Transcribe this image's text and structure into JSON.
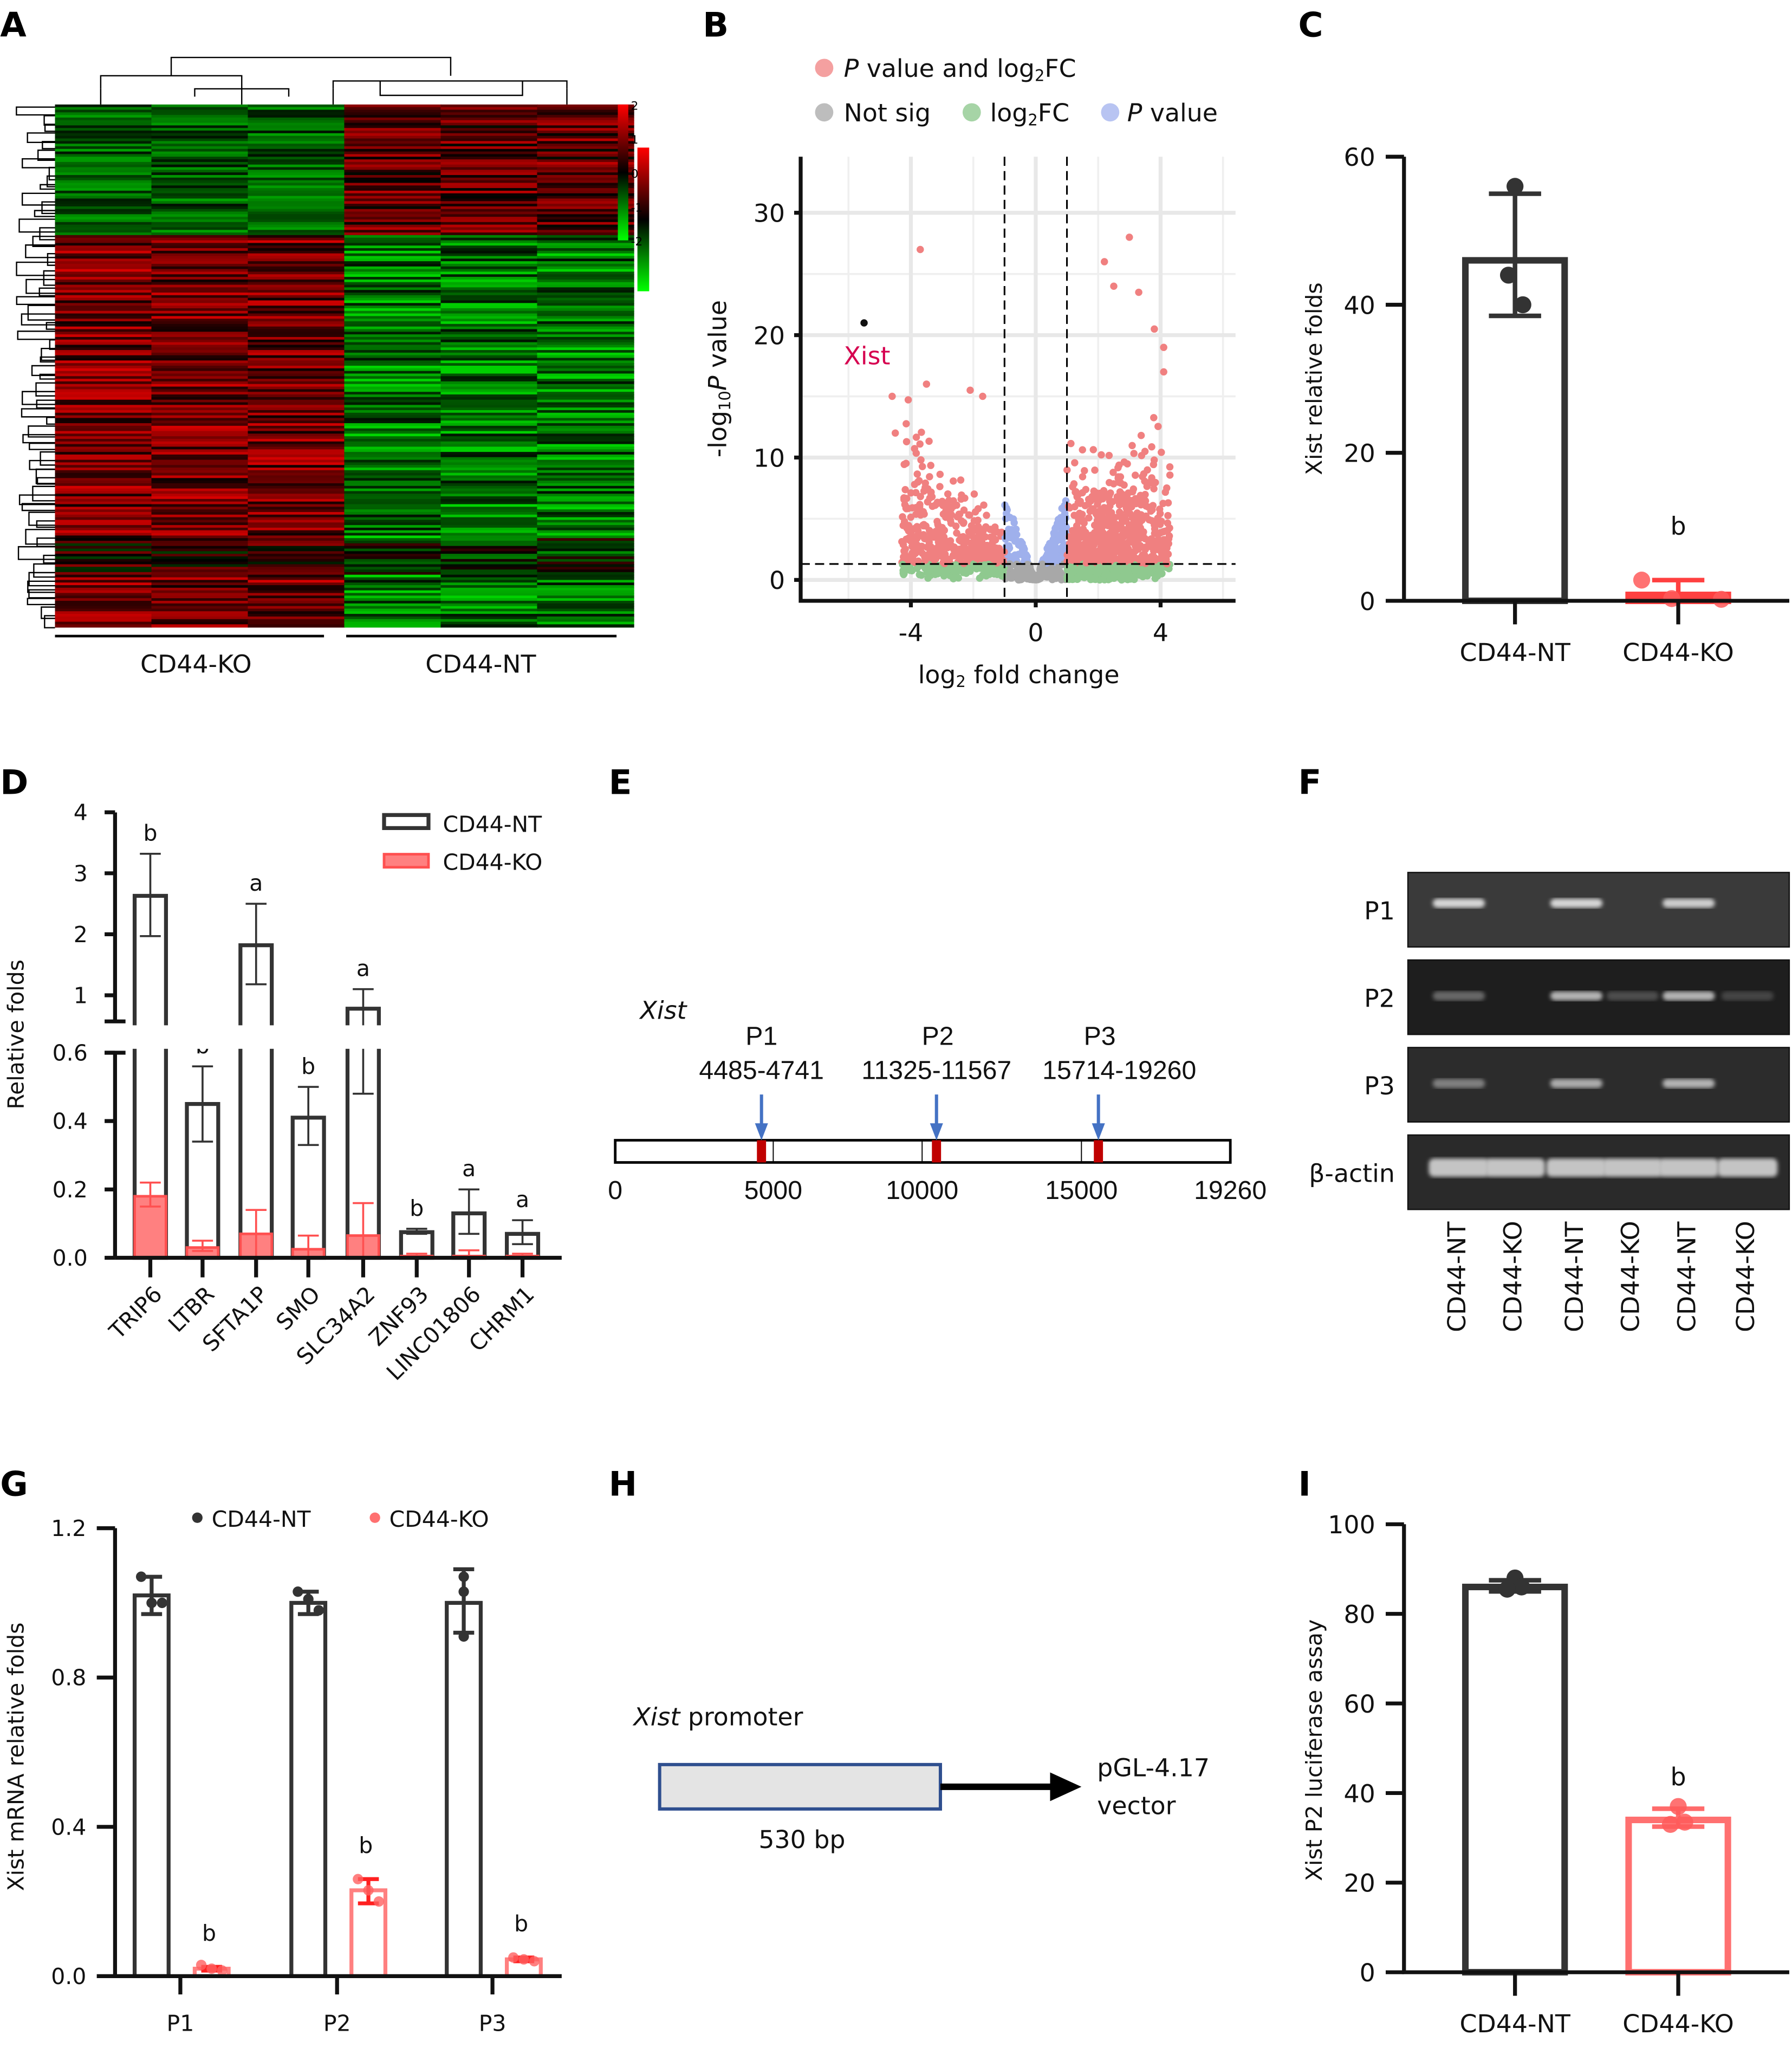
{
  "colors": {
    "nt": "#333333",
    "ko": "#ff6b6b",
    "ko_fill": "#ff8080",
    "sig_both": "#f08080",
    "not_sig": "#a8a8a8",
    "log2fc_only": "#8fc98f",
    "p_only": "#9fb0ec",
    "arrow": "#4472c4",
    "probe": "#c00000",
    "xist_label": "#d6004f"
  },
  "panel_labels": [
    "A",
    "B",
    "C",
    "D",
    "E",
    "F",
    "G",
    "H",
    "I"
  ],
  "chart_data": [
    {
      "panel": "A",
      "type": "heatmap",
      "groups": [
        "CD44-KO",
        "CD44-NT"
      ],
      "colorbar_ticks": [
        "2",
        "1",
        "0",
        "-1",
        "-2"
      ],
      "colormap": [
        "#00ff00",
        "#000000",
        "#ff0000"
      ],
      "columns": 6,
      "dendrogram": {
        "rows": true,
        "columns": true
      }
    },
    {
      "panel": "B",
      "type": "scatter",
      "xlabel_pre": "log",
      "xlabel_sub": "2",
      "xlabel_post": " fold change",
      "ylabel_pre": "-log",
      "ylabel_sub": "10",
      "ylabel_italic": "P",
      "ylabel_post": " value",
      "xticks": [
        -4,
        0,
        4
      ],
      "yticks": [
        0,
        10,
        20,
        30
      ],
      "xlim": [
        -7,
        6.5
      ],
      "ylim": [
        -1.5,
        34
      ],
      "log2fc_thresholds": [
        -1,
        1
      ],
      "p_threshold": 1.3,
      "legend": [
        {
          "italic": "P",
          "text": " value and log",
          "sub": "2",
          "tail": "FC",
          "color": "#f08080"
        },
        {
          "italic": "",
          "text": "Not sig",
          "sub": "",
          "tail": "",
          "color": "#a8a8a8"
        },
        {
          "italic": "",
          "text": "log",
          "sub": "2",
          "tail": "FC",
          "color": "#8fc98f"
        },
        {
          "italic": "P",
          "text": " value",
          "sub": "",
          "tail": "",
          "color": "#9fb0ec"
        }
      ],
      "legend_position": "top",
      "grid": true,
      "annotation": {
        "label": "Xist",
        "x": -5.5,
        "y": 21
      },
      "notable_points": [
        [
          -3.7,
          27
        ],
        [
          2.2,
          26
        ],
        [
          3,
          28
        ],
        [
          2.5,
          24
        ],
        [
          3.3,
          23.5
        ],
        [
          3.8,
          20.5
        ],
        [
          4.1,
          19
        ],
        [
          4.1,
          17
        ],
        [
          -3.5,
          16
        ],
        [
          -2.1,
          15.5
        ],
        [
          -1.7,
          15
        ],
        [
          -4.6,
          15
        ],
        [
          -4.5,
          12
        ],
        [
          3.5,
          10.5
        ]
      ]
    },
    {
      "panel": "C",
      "type": "bar",
      "categories": [
        "CD44-NT",
        "CD44-KO"
      ],
      "values": [
        46,
        0.8
      ],
      "errors_low": [
        38.5,
        0
      ],
      "errors_high": [
        55,
        2.8
      ],
      "points": [
        [
          56,
          44,
          40
        ],
        [
          2.8,
          0.3,
          0.2
        ]
      ],
      "ylabel": "Xist relative folds",
      "yticks": [
        0,
        20,
        40,
        60
      ],
      "ylim": [
        0,
        60
      ],
      "significance": [
        "",
        "b"
      ]
    },
    {
      "panel": "D",
      "type": "bar",
      "categories": [
        "TRIP6",
        "LTBR",
        "SFTA1P",
        "SMO",
        "SLC34A2",
        "ZNF93",
        "LINC01806",
        "CHRM1"
      ],
      "series": [
        {
          "name": "CD44-NT",
          "values": [
            2.63,
            0.45,
            1.82,
            0.41,
            0.78,
            0.075,
            0.13,
            0.07
          ],
          "low": [
            1.97,
            0.34,
            1.18,
            0.33,
            0.48,
            0.07,
            0.07,
            0.04
          ],
          "high": [
            3.32,
            0.56,
            2.5,
            0.5,
            1.1,
            0.085,
            0.2,
            0.11
          ]
        },
        {
          "name": "CD44-KO",
          "values": [
            0.18,
            0.03,
            0.07,
            0.025,
            0.065,
            0.005,
            0.005,
            0.005
          ],
          "low": [
            0.15,
            0.02,
            0,
            0,
            0,
            0,
            0,
            0
          ],
          "high": [
            0.22,
            0.05,
            0.14,
            0.065,
            0.16,
            0.012,
            0.022,
            0.012
          ]
        }
      ],
      "significance": [
        "b",
        "b",
        "a",
        "b",
        "a",
        "b",
        "a",
        "a"
      ],
      "ylabel": "Relative folds",
      "yticks_lower": [
        "0.0",
        "0.2",
        "0.4",
        "0.6"
      ],
      "yticks_upper": [
        "1",
        "2",
        "3",
        "4"
      ],
      "axis_break": [
        0.6,
        1
      ],
      "legend_position": "top-right"
    },
    {
      "panel": "E",
      "type": "diagram",
      "gene": "Xist",
      "length": 19260,
      "scale_ticks": [
        "0",
        "5000",
        "10000",
        "15000",
        "19260"
      ],
      "probes": [
        {
          "name": "P1",
          "range": "4485-4741"
        },
        {
          "name": "P2",
          "range": "11325-11567"
        },
        {
          "name": "P3",
          "range": "15714-19260"
        }
      ]
    },
    {
      "panel": "F",
      "type": "gel",
      "rows": [
        "P1",
        "P2",
        "P3",
        "β-actin"
      ],
      "lanes": [
        "CD44-NT",
        "CD44-KO",
        "CD44-NT",
        "CD44-KO",
        "CD44-NT",
        "CD44-KO"
      ],
      "band_intensity": [
        [
          0.9,
          0,
          0.9,
          0,
          0.85,
          0
        ],
        [
          0.25,
          0,
          0.7,
          0.1,
          0.7,
          0.05
        ],
        [
          0.4,
          0,
          0.65,
          0,
          0.7,
          0
        ],
        [
          0.8,
          0.8,
          0.8,
          0.8,
          0.8,
          0.8
        ]
      ]
    },
    {
      "panel": "G",
      "type": "bar",
      "categories": [
        "P1",
        "P2",
        "P3"
      ],
      "series": [
        {
          "name": "CD44-NT",
          "values": [
            1.02,
            1.0,
            1.0
          ],
          "low": [
            0.97,
            0.97,
            0.92
          ],
          "high": [
            1.07,
            1.03,
            1.09
          ],
          "points": [
            [
              1.07,
              1.0,
              1.0
            ],
            [
              1.03,
              1.01,
              0.98
            ],
            [
              1.07,
              1.03,
              0.91
            ]
          ]
        },
        {
          "name": "CD44-KO",
          "values": [
            0.02,
            0.23,
            0.045
          ],
          "low": [
            0.015,
            0.195,
            0.04
          ],
          "high": [
            0.025,
            0.26,
            0.05
          ],
          "points": [
            [
              0.03,
              0.02,
              0.015
            ],
            [
              0.26,
              0.23,
              0.2
            ],
            [
              0.05,
              0.045,
              0.04
            ]
          ]
        }
      ],
      "significance": [
        "b",
        "b",
        "b"
      ],
      "ylabel": "Xist mRNA relative folds",
      "yticks": [
        "0.0",
        "0.4",
        "0.8",
        "1.2"
      ],
      "ylim": [
        0,
        1.2
      ],
      "legend_position": "top"
    },
    {
      "panel": "H",
      "type": "diagram",
      "promoter_italic": "Xist",
      "promoter_text": " promoter",
      "size": "530 bp",
      "vector_line1": "pGL-4.17",
      "vector_line2": "vector"
    },
    {
      "panel": "I",
      "type": "bar",
      "categories": [
        "CD44-NT",
        "CD44-KO"
      ],
      "values": [
        86,
        34
      ],
      "errors_low": [
        85,
        32.5
      ],
      "errors_high": [
        87.5,
        36.5
      ],
      "points": [
        [
          88,
          86,
          85.5
        ],
        [
          37,
          33.5,
          33
        ]
      ],
      "ylabel": "Xist P2 luciferase assay",
      "yticks": [
        0,
        20,
        40,
        60,
        80,
        100
      ],
      "ylim": [
        0,
        100
      ],
      "significance": [
        "",
        "b"
      ]
    }
  ]
}
